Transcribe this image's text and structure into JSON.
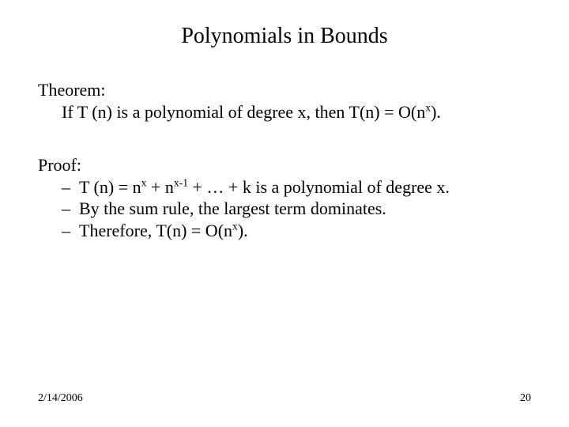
{
  "title": "Polynomials in Bounds",
  "theorem": {
    "label": "Theorem:",
    "prefix": "If  T (n) is a polynomial of degree x, then T(n) = O(n",
    "exp": "x",
    "suffix": ")."
  },
  "proof": {
    "label": "Proof:",
    "line1": {
      "a": "T (n) = n",
      "e1": "x",
      "b": " + n",
      "e2": "x-1",
      "c": " +  … + k is a polynomial of degree x."
    },
    "line2": "By the sum rule, the largest term dominates.",
    "line3": {
      "a": "Therefore,  T(n) = O(n",
      "e": "x",
      "b": ")."
    }
  },
  "footer": {
    "date": "2/14/2006",
    "page": "20"
  },
  "style": {
    "bg": "#ffffff",
    "text_color": "#000000",
    "title_fontsize": 28,
    "body_fontsize": 22,
    "footer_fontsize": 14,
    "font_family": "Times New Roman"
  }
}
